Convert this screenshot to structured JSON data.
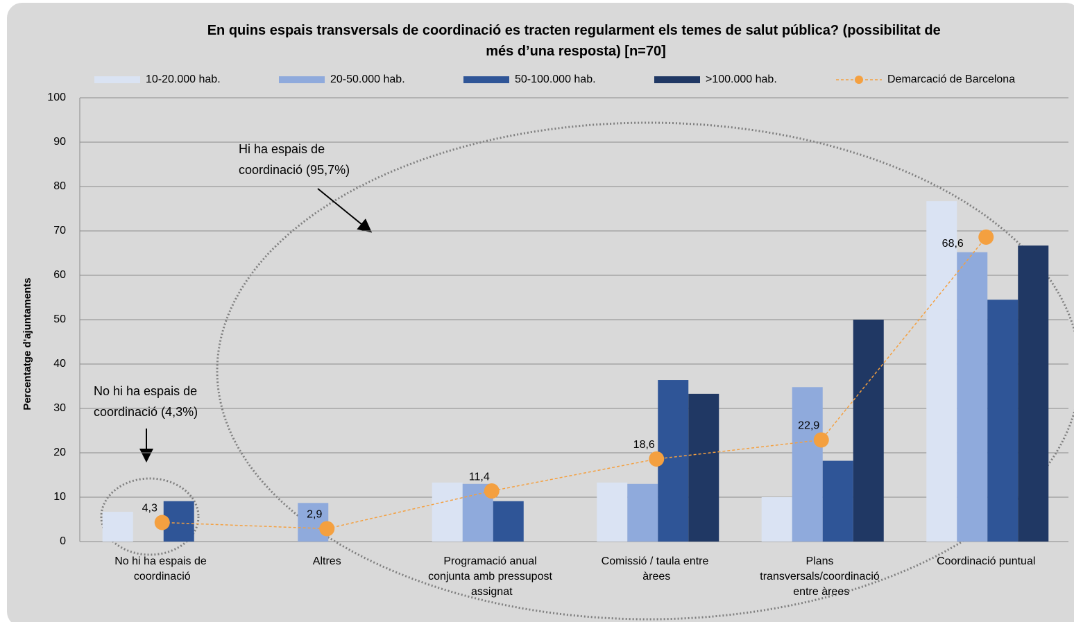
{
  "chart_data": {
    "type": "bar",
    "title": "En quins espais transversals de coordinació es tracten regularment els temes de salut pública? (possibilitat de més d’una resposta) [n=70]",
    "y_label": "Percentatge d'ajuntaments",
    "categories": [
      "No hi ha espais de coordinació",
      "Altres",
      "Programació anual conjunta amb pressupost assignat",
      "Comissió / taula entre àrees",
      "Plans transversals/coordinació entre àrees",
      "Coordinació puntual"
    ],
    "series": [
      {
        "name": "10-20.000 hab.",
        "color": "#dae3f3",
        "values": [
          6.7,
          0,
          13.3,
          13.3,
          10.0,
          76.7
        ]
      },
      {
        "name": "20-50.000 hab.",
        "color": "#8faadc",
        "values": [
          0,
          8.7,
          13.0,
          13.0,
          34.8,
          65.2
        ]
      },
      {
        "name": "50-100.000 hab.",
        "color": "#2f5597",
        "values": [
          9.1,
          0,
          9.1,
          36.4,
          18.2,
          54.5
        ]
      },
      {
        "name": ">100.000 hab.",
        "color": "#203864",
        "values": [
          0,
          0,
          0,
          33.3,
          50.0,
          66.7
        ]
      },
      {
        "name": "Demarcació de  Barcelona",
        "type": "line",
        "color": "#f4a040",
        "values": [
          4.3,
          2.9,
          11.4,
          18.6,
          22.9,
          68.6
        ],
        "value_labels": [
          "4,3",
          "2,9",
          "11,4",
          "18,6",
          "22,9",
          "68,6"
        ]
      }
    ],
    "annotations": [
      "Hi ha espais de coordinació (95,7%)",
      "No hi ha espais de coordinació (4,3%)"
    ],
    "ylim": [
      0,
      100
    ],
    "yticks": [
      0,
      10,
      20,
      30,
      40,
      50,
      60,
      70,
      80,
      90,
      100
    ],
    "grid": true,
    "legend": "top"
  }
}
